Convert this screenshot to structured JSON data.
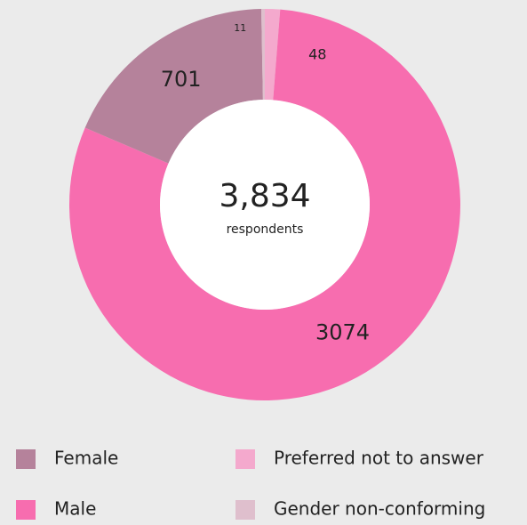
{
  "chart_data": {
    "type": "donut",
    "center_value": "3,834",
    "center_label": "respondents",
    "categories": [
      "Female",
      "Male",
      "Preferred not to answer",
      "Gender non-conforming"
    ],
    "values": [
      701,
      3074,
      48,
      11
    ],
    "colors": [
      "#b5829b",
      "#f76daf",
      "#f4a9cd",
      "#dfbfcd"
    ],
    "slice_order": [
      2,
      1,
      0,
      3
    ]
  }
}
